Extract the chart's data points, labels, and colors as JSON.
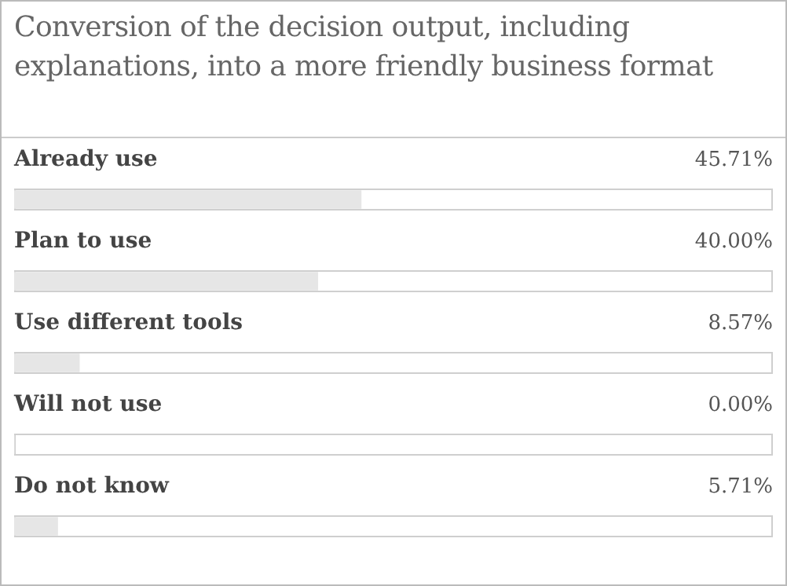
{
  "chart_data": {
    "type": "bar",
    "orientation": "horizontal",
    "title": "Conversion of the decision output, including explanations, into a more friendly business format",
    "categories": [
      "Already use",
      "Plan to use",
      "Use different tools",
      "Will not use",
      "Do not know"
    ],
    "values": [
      45.71,
      40.0,
      8.57,
      0.0,
      5.71
    ],
    "value_labels": [
      "45.71%",
      "40.00%",
      "8.57%",
      "0.00%",
      "5.71%"
    ],
    "color": "#e6e6e6",
    "xlim": [
      0,
      100
    ],
    "tick_labels": false,
    "legend": false
  }
}
